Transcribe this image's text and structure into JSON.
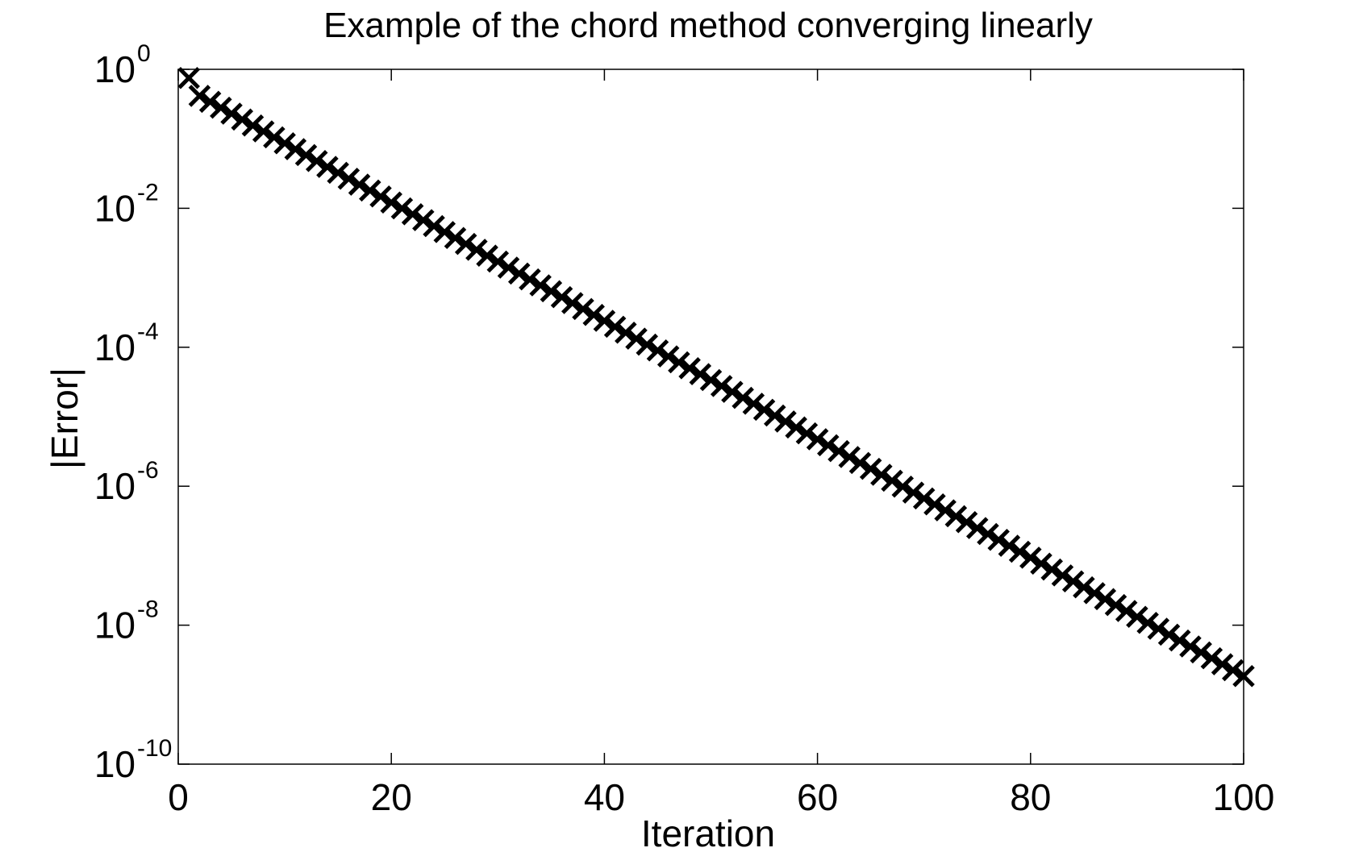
{
  "chart_data": {
    "type": "scatter",
    "title": "Example of the chord method converging linearly",
    "xlabel": "Iteration",
    "ylabel": "|Error|",
    "xlim": [
      0,
      100
    ],
    "ylim": [
      1e-10,
      1
    ],
    "yscale": "log",
    "x_ticks": [
      0,
      20,
      40,
      60,
      80,
      100
    ],
    "y_ticks": [
      {
        "base": "10",
        "exp": "0",
        "value": 1
      },
      {
        "base": "10",
        "exp": "-2",
        "value": 0.01
      },
      {
        "base": "10",
        "exp": "-4",
        "value": 0.0001
      },
      {
        "base": "10",
        "exp": "-6",
        "value": 1e-06
      },
      {
        "base": "10",
        "exp": "-8",
        "value": 1e-08
      },
      {
        "base": "10",
        "exp": "-10",
        "value": 1e-10
      }
    ],
    "grid": false,
    "marker": "x",
    "series_color": "#000000",
    "series": [
      {
        "x": [
          1,
          2,
          3,
          4,
          5,
          6,
          7,
          8,
          9,
          10,
          11,
          12,
          13,
          14,
          15,
          16,
          17,
          18,
          19,
          20,
          21,
          22,
          23,
          24,
          25,
          26,
          27,
          28,
          29,
          30,
          31,
          32,
          33,
          34,
          35,
          36,
          37,
          38,
          39,
          40,
          41,
          42,
          43,
          44,
          45,
          46,
          47,
          48,
          49,
          50,
          51,
          52,
          53,
          54,
          55,
          56,
          57,
          58,
          59,
          60,
          61,
          62,
          63,
          64,
          65,
          66,
          67,
          68,
          69,
          70,
          71,
          72,
          73,
          74,
          75,
          76,
          77,
          78,
          79,
          80,
          81,
          82,
          83,
          84,
          85,
          86,
          87,
          88,
          89,
          90,
          91,
          92,
          93,
          94,
          95,
          96,
          97,
          98,
          99,
          100
        ],
        "y": [
          0.75,
          0.4147,
          0.3408,
          0.2801,
          0.2302,
          0.1892,
          0.1555,
          0.1278,
          0.105,
          0.0863,
          0.0709,
          0.0583,
          0.0479,
          0.0394,
          0.0324,
          0.0266,
          0.0219,
          0.018,
          0.0148,
          0.0121,
          0.00998,
          0.0082,
          0.00674,
          0.00554,
          0.00455,
          0.00374,
          0.00307,
          0.00253,
          0.00208,
          0.00171,
          0.0014,
          0.00115,
          0.000947,
          0.000778,
          0.00064,
          0.000526,
          0.000432,
          0.000355,
          0.000292,
          0.00024,
          0.000197,
          0.000162,
          0.000133,
          0.000109,
          8.99e-05,
          7.39e-05,
          6.07e-05,
          4.99e-05,
          4.1e-05,
          3.37e-05,
          2.77e-05,
          2.28e-05,
          1.87e-05,
          1.54e-05,
          1.26e-05,
          1.04e-05,
          8.53e-06,
          7.01e-06,
          5.76e-06,
          4.74e-06,
          3.89e-06,
          3.2e-06,
          2.63e-06,
          2.16e-06,
          1.78e-06,
          1.46e-06,
          1.2e-06,
          9.86e-07,
          8.1e-07,
          6.66e-07,
          5.47e-07,
          4.5e-07,
          3.7e-07,
          3.04e-07,
          2.5e-07,
          2.05e-07,
          1.69e-07,
          1.39e-07,
          1.14e-07,
          9.36e-08,
          7.69e-08,
          6.32e-08,
          5.2e-08,
          4.27e-08,
          3.51e-08,
          2.89e-08,
          2.37e-08,
          1.95e-08,
          1.6e-08,
          1.32e-08,
          1.08e-08,
          8.9e-09,
          7.31e-09,
          6.01e-09,
          4.94e-09,
          4.06e-09,
          3.34e-09,
          2.74e-09,
          2.25e-09,
          1.85e-09
        ]
      }
    ]
  }
}
